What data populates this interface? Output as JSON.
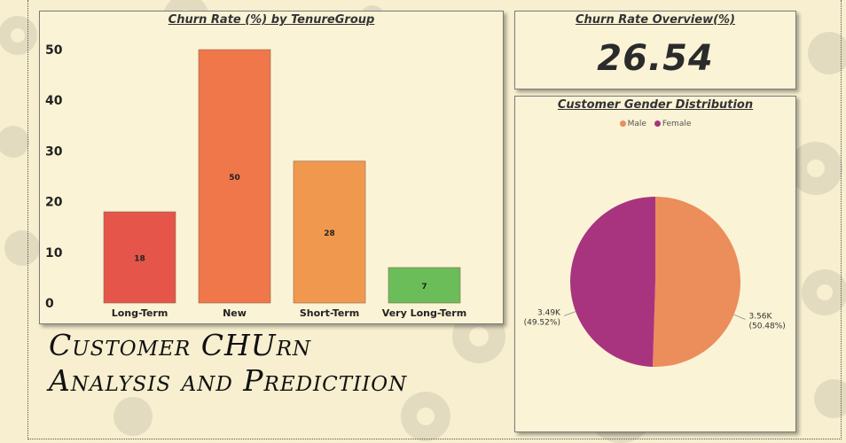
{
  "dashboard": {
    "title_line1": "Customer CHUrn",
    "title_line2": "Analysis and Predictiion"
  },
  "kpi": {
    "title": "Churn Rate Overview(%)",
    "value": "26.54"
  },
  "colors": {
    "background": "#f7efcf",
    "card": "#fbf3d6",
    "gear": "#e0d8bf",
    "male": "#ec8d5c",
    "female": "#a8347f"
  },
  "chart_data": [
    {
      "type": "bar",
      "title": "Churn Rate (%) by TenureGroup",
      "categories": [
        "Long-Term",
        "New",
        "Short-Term",
        "Very Long-Term"
      ],
      "values": [
        18,
        50,
        28,
        7
      ],
      "data_labels": [
        "18",
        "50",
        "28",
        "7"
      ],
      "bar_colors": [
        "#e5554a",
        "#f0774a",
        "#f0994e",
        "#6bbd5a"
      ],
      "ylim": [
        0,
        50
      ],
      "yticks": [
        "0",
        "10",
        "20",
        "30",
        "40",
        "50"
      ],
      "grid": false,
      "legend": "none"
    },
    {
      "type": "pie",
      "title": "Customer Gender Distribution",
      "legend": "top",
      "slices": [
        {
          "name": "Male",
          "value": 3.56,
          "label": "3.56K",
          "pct": "(50.48%)",
          "color": "#ec8d5c"
        },
        {
          "name": "Female",
          "value": 3.49,
          "label": "3.49K",
          "pct": "(49.52%)",
          "color": "#a8347f"
        }
      ]
    }
  ]
}
